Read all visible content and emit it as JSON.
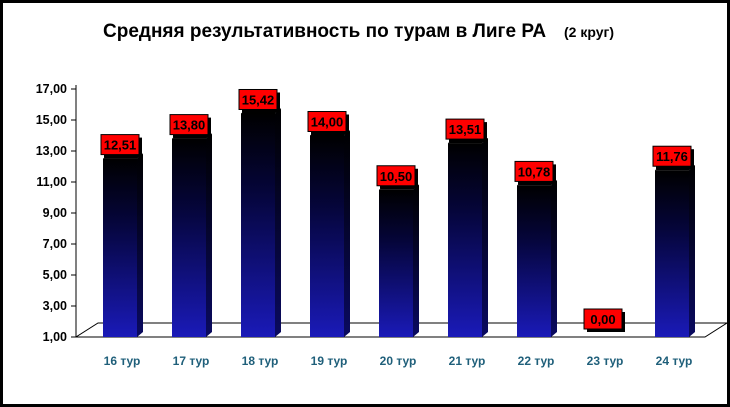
{
  "chart_data": {
    "type": "bar",
    "title": "Средняя результативность по турам в Лиге РА",
    "subtitle": "(2 круг)",
    "xlabel": "",
    "ylabel": "",
    "categories": [
      "16 тур",
      "17 тур",
      "18 тур",
      "19 тур",
      "20 тур",
      "21 тур",
      "22 тур",
      "23 тур",
      "24 тур"
    ],
    "values": [
      12.51,
      13.8,
      15.42,
      14.0,
      10.5,
      13.51,
      10.78,
      0.0,
      11.76
    ],
    "value_labels": [
      "12,51",
      "13,80",
      "15,42",
      "14,00",
      "10,50",
      "13,51",
      "10,78",
      "0,00",
      "11,76"
    ],
    "yticks": [
      "1,00",
      "3,00",
      "5,00",
      "7,00",
      "9,00",
      "11,00",
      "13,00",
      "15,00",
      "17,00"
    ],
    "ylim": [
      1,
      17
    ],
    "grid": false,
    "legend": "none",
    "colors": {
      "bar_top": "#000000",
      "bar_bottom": "#1a1ab8",
      "label_bg": "#ff0000",
      "tick_x": "#1f5f7a"
    }
  }
}
